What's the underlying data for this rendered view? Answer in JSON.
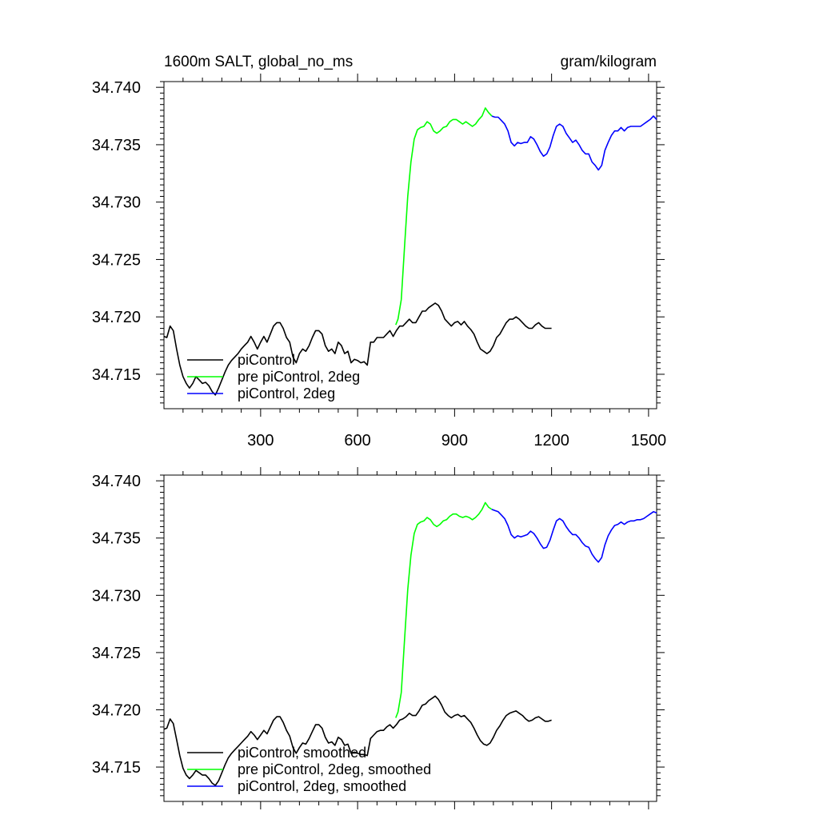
{
  "chart_data": [
    {
      "type": "line",
      "title_left": "1600m SALT, global_no_ms",
      "title_right": "gram/kilogram",
      "xlabel": "",
      "ylabel": "",
      "xlim": [
        1,
        1525
      ],
      "ylim": [
        34.712,
        34.7405
      ],
      "x_ticks": [
        300,
        600,
        900,
        1200,
        1500
      ],
      "x_tick_labels": [
        "300",
        "600",
        "900",
        "1200",
        "1500"
      ],
      "y_ticks": [
        34.715,
        34.72,
        34.725,
        34.73,
        34.735,
        34.74
      ],
      "y_tick_labels": [
        "34.715",
        "34.720",
        "34.725",
        "34.730",
        "34.735",
        "34.740"
      ],
      "legend_position": "bottom-left",
      "series": [
        {
          "name": "piControl",
          "color": "#000000",
          "x": [
            1,
            10,
            20,
            30,
            40,
            50,
            60,
            70,
            80,
            90,
            100,
            110,
            120,
            130,
            140,
            150,
            160,
            170,
            180,
            190,
            200,
            210,
            220,
            230,
            240,
            250,
            260,
            270,
            280,
            290,
            300,
            310,
            320,
            330,
            340,
            350,
            360,
            370,
            380,
            390,
            400,
            410,
            420,
            430,
            440,
            450,
            460,
            470,
            480,
            490,
            500,
            510,
            520,
            530,
            540,
            550,
            560,
            570,
            580,
            590,
            600,
            610,
            620,
            630,
            640,
            650,
            660,
            670,
            680,
            690,
            700,
            710,
            720,
            730,
            740,
            750,
            760,
            770,
            780,
            790,
            800,
            810,
            820,
            830,
            840,
            850,
            860,
            870,
            880,
            890,
            900,
            910,
            920,
            930,
            940,
            950,
            960,
            970,
            980,
            990,
            1000,
            1010,
            1020,
            1030,
            1040,
            1050,
            1060,
            1070,
            1080,
            1090,
            1100,
            1110,
            1120,
            1130,
            1140,
            1150,
            1160,
            1170,
            1180,
            1190,
            1200
          ],
          "values": [
            34.7183,
            34.7182,
            34.7192,
            34.7188,
            34.7172,
            34.7158,
            34.7148,
            34.7142,
            34.7138,
            34.7142,
            34.7148,
            34.7145,
            34.7142,
            34.7143,
            34.714,
            34.7135,
            34.7132,
            34.7138,
            34.7145,
            34.7152,
            34.7158,
            34.7162,
            34.7165,
            34.7168,
            34.7172,
            34.7175,
            34.7178,
            34.7183,
            34.7178,
            34.7172,
            34.7178,
            34.7183,
            34.7178,
            34.7185,
            34.7192,
            34.7195,
            34.7195,
            34.719,
            34.7182,
            34.7178,
            34.7165,
            34.716,
            34.7168,
            34.7172,
            34.717,
            34.7175,
            34.7182,
            34.7188,
            34.7188,
            34.7185,
            34.7175,
            34.717,
            34.7172,
            34.7168,
            34.7178,
            34.7175,
            34.7168,
            34.717,
            34.716,
            34.7163,
            34.7162,
            34.716,
            34.7161,
            34.7158,
            34.7178,
            34.7178,
            34.7182,
            34.7182,
            34.7182,
            34.7185,
            34.7188,
            34.7183,
            34.7188,
            34.7192,
            34.7192,
            34.7195,
            34.7198,
            34.7195,
            34.7195,
            34.72,
            34.7205,
            34.7205,
            34.7208,
            34.721,
            34.7212,
            34.721,
            34.7205,
            34.7198,
            34.7195,
            34.7192,
            34.7195,
            34.7196,
            34.7193,
            34.7196,
            34.7192,
            34.7189,
            34.7185,
            34.7178,
            34.7172,
            34.717,
            34.7168,
            34.717,
            34.7175,
            34.7182,
            34.7185,
            34.719,
            34.7195,
            34.7198,
            34.7198,
            34.72,
            34.7198,
            34.7195,
            34.7192,
            34.719,
            34.719,
            34.7193,
            34.7195,
            34.7192,
            34.719,
            34.719,
            34.719
          ]
        },
        {
          "name": "pre piControl, 2deg",
          "color": "#00ff00",
          "x": [
            718,
            725,
            735,
            745,
            755,
            765,
            775,
            785,
            795,
            805,
            815,
            825,
            835,
            845,
            855,
            865,
            875,
            885,
            895,
            905,
            915,
            925,
            935,
            945,
            955,
            965,
            975,
            985,
            995,
            1005,
            1015
          ],
          "values": [
            34.7193,
            34.7198,
            34.7215,
            34.726,
            34.7305,
            34.7335,
            34.7355,
            34.7363,
            34.7365,
            34.7366,
            34.737,
            34.7368,
            34.7362,
            34.736,
            34.7362,
            34.7365,
            34.7366,
            34.737,
            34.7372,
            34.7372,
            34.737,
            34.7368,
            34.737,
            34.7368,
            34.7366,
            34.7368,
            34.7372,
            34.7375,
            34.7382,
            34.7378,
            34.7375
          ]
        },
        {
          "name": "piControl, 2deg",
          "color": "#0000ff",
          "x": [
            1015,
            1025,
            1035,
            1045,
            1055,
            1065,
            1075,
            1085,
            1095,
            1105,
            1115,
            1125,
            1135,
            1145,
            1155,
            1165,
            1175,
            1185,
            1195,
            1205,
            1215,
            1225,
            1235,
            1245,
            1255,
            1265,
            1275,
            1285,
            1295,
            1305,
            1315,
            1325,
            1335,
            1345,
            1355,
            1365,
            1375,
            1385,
            1395,
            1405,
            1415,
            1425,
            1435,
            1445,
            1455,
            1465,
            1475,
            1485,
            1495,
            1505,
            1515,
            1525
          ],
          "values": [
            34.7375,
            34.7374,
            34.7374,
            34.7371,
            34.7368,
            34.7362,
            34.7352,
            34.7349,
            34.7352,
            34.7351,
            34.7352,
            34.7352,
            34.7357,
            34.7355,
            34.735,
            34.7344,
            34.734,
            34.7342,
            34.7348,
            34.7358,
            34.7366,
            34.7368,
            34.7366,
            34.736,
            34.7356,
            34.7352,
            34.7354,
            34.735,
            34.7345,
            34.7342,
            34.7342,
            34.7335,
            34.7332,
            34.7328,
            34.7332,
            34.7345,
            34.7352,
            34.7358,
            34.7362,
            34.7362,
            34.7365,
            34.7362,
            34.7365,
            34.7366,
            34.7366,
            34.7366,
            34.7366,
            34.7368,
            34.737,
            34.7372,
            34.7375,
            34.7372
          ]
        }
      ]
    },
    {
      "type": "line",
      "title_left": "",
      "title_right": "",
      "xlabel": "",
      "ylabel": "",
      "xlim": [
        1,
        1525
      ],
      "ylim": [
        34.712,
        34.7405
      ],
      "x_ticks": [
        300,
        600,
        900,
        1200,
        1500
      ],
      "x_tick_labels": [],
      "y_ticks": [
        34.715,
        34.72,
        34.725,
        34.73,
        34.735,
        34.74
      ],
      "y_tick_labels": [
        "34.715",
        "34.720",
        "34.725",
        "34.730",
        "34.735",
        "34.740"
      ],
      "legend_position": "bottom-left",
      "series": [
        {
          "name": "piControl, smoothed",
          "color": "#000000",
          "x": [
            1,
            10,
            20,
            30,
            40,
            50,
            60,
            70,
            80,
            90,
            100,
            110,
            120,
            130,
            140,
            150,
            160,
            170,
            180,
            190,
            200,
            210,
            220,
            230,
            240,
            250,
            260,
            270,
            280,
            290,
            300,
            310,
            320,
            330,
            340,
            350,
            360,
            370,
            380,
            390,
            400,
            410,
            420,
            430,
            440,
            450,
            460,
            470,
            480,
            490,
            500,
            510,
            520,
            530,
            540,
            550,
            560,
            570,
            580,
            590,
            600,
            610,
            620,
            630,
            640,
            650,
            660,
            670,
            680,
            690,
            700,
            710,
            720,
            730,
            740,
            750,
            760,
            770,
            780,
            790,
            800,
            810,
            820,
            830,
            840,
            850,
            860,
            870,
            880,
            890,
            900,
            910,
            920,
            930,
            940,
            950,
            960,
            970,
            980,
            990,
            1000,
            1010,
            1020,
            1030,
            1040,
            1050,
            1060,
            1070,
            1080,
            1090,
            1100,
            1110,
            1120,
            1130,
            1140,
            1150,
            1160,
            1170,
            1180,
            1190,
            1200
          ],
          "values": [
            34.7183,
            34.7184,
            34.7192,
            34.7188,
            34.7174,
            34.716,
            34.7149,
            34.7143,
            34.714,
            34.7143,
            34.7147,
            34.7145,
            34.7143,
            34.7143,
            34.714,
            34.7136,
            34.7134,
            34.7138,
            34.7145,
            34.7152,
            34.7158,
            34.7162,
            34.7165,
            34.7168,
            34.7171,
            34.7174,
            34.7177,
            34.7181,
            34.7178,
            34.7174,
            34.7178,
            34.7182,
            34.7179,
            34.7185,
            34.7191,
            34.7194,
            34.7194,
            34.7189,
            34.7182,
            34.7177,
            34.7167,
            34.7162,
            34.7167,
            34.7171,
            34.717,
            34.7175,
            34.7181,
            34.7187,
            34.7187,
            34.7184,
            34.7176,
            34.7171,
            34.7172,
            34.7169,
            34.7176,
            34.7174,
            34.7169,
            34.717,
            34.7162,
            34.7163,
            34.7162,
            34.7161,
            34.7161,
            34.716,
            34.7175,
            34.7178,
            34.7181,
            34.7182,
            34.7182,
            34.7185,
            34.7187,
            34.7184,
            34.7187,
            34.7191,
            34.7192,
            34.7194,
            34.7197,
            34.7195,
            34.7195,
            34.7199,
            34.7204,
            34.7205,
            34.7208,
            34.721,
            34.7212,
            34.7209,
            34.7204,
            34.7198,
            34.7195,
            34.7193,
            34.7195,
            34.7196,
            34.7194,
            34.7195,
            34.7192,
            34.7189,
            34.7184,
            34.7178,
            34.7173,
            34.717,
            34.7169,
            34.7171,
            34.7176,
            34.7182,
            34.7186,
            34.7191,
            34.7195,
            34.7197,
            34.7198,
            34.7199,
            34.7197,
            34.7195,
            34.7192,
            34.719,
            34.7191,
            34.7193,
            34.7194,
            34.7192,
            34.719,
            34.719,
            34.7191
          ]
        },
        {
          "name": "pre piControl, 2deg, smoothed",
          "color": "#00ff00",
          "x": [
            718,
            725,
            735,
            745,
            755,
            765,
            775,
            785,
            795,
            805,
            815,
            825,
            835,
            845,
            855,
            865,
            875,
            885,
            895,
            905,
            915,
            925,
            935,
            945,
            955,
            965,
            975,
            985,
            995,
            1005,
            1015
          ],
          "values": [
            34.7193,
            34.7198,
            34.7215,
            34.726,
            34.7305,
            34.7335,
            34.7354,
            34.7362,
            34.7364,
            34.7365,
            34.7368,
            34.7366,
            34.7362,
            34.736,
            34.7362,
            34.7365,
            34.7366,
            34.7369,
            34.7371,
            34.7371,
            34.7369,
            34.7368,
            34.7369,
            34.7368,
            34.7366,
            34.7368,
            34.7371,
            34.7375,
            34.7381,
            34.7377,
            34.7375
          ]
        },
        {
          "name": "piControl, 2deg, smoothed",
          "color": "#0000ff",
          "x": [
            1015,
            1025,
            1035,
            1045,
            1055,
            1065,
            1075,
            1085,
            1095,
            1105,
            1115,
            1125,
            1135,
            1145,
            1155,
            1165,
            1175,
            1185,
            1195,
            1205,
            1215,
            1225,
            1235,
            1245,
            1255,
            1265,
            1275,
            1285,
            1295,
            1305,
            1315,
            1325,
            1335,
            1345,
            1355,
            1365,
            1375,
            1385,
            1395,
            1405,
            1415,
            1425,
            1435,
            1445,
            1455,
            1465,
            1475,
            1485,
            1495,
            1505,
            1515,
            1525
          ],
          "values": [
            34.7375,
            34.7374,
            34.7373,
            34.737,
            34.7367,
            34.7361,
            34.7353,
            34.735,
            34.7352,
            34.7351,
            34.7352,
            34.7353,
            34.7356,
            34.7354,
            34.735,
            34.7345,
            34.7341,
            34.7342,
            34.7348,
            34.7357,
            34.7365,
            34.7367,
            34.7365,
            34.736,
            34.7356,
            34.7353,
            34.7353,
            34.735,
            34.7346,
            34.7343,
            34.7342,
            34.7336,
            34.7332,
            34.7329,
            34.7333,
            34.7344,
            34.7352,
            34.7357,
            34.7361,
            34.7362,
            34.7364,
            34.7362,
            34.7364,
            34.7365,
            34.7365,
            34.7366,
            34.7366,
            34.7367,
            34.7369,
            34.7371,
            34.7373,
            34.7372
          ]
        }
      ]
    }
  ]
}
